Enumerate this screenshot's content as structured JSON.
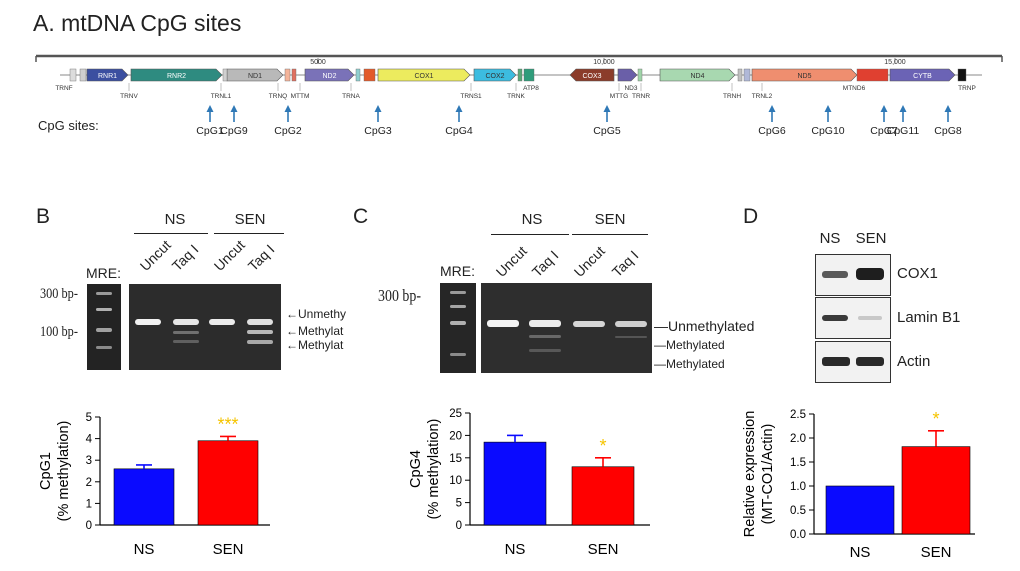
{
  "title": "A. mtDNA CpG sites",
  "genome": {
    "ruler_ticks": [
      "5000",
      "10,000",
      "15,000"
    ],
    "genes": [
      {
        "name": "RNR1",
        "color": "#3b4fa0",
        "labeled": true
      },
      {
        "name": "RNR2",
        "color": "#2e8b80",
        "labeled": true
      },
      {
        "name": "ND1",
        "color": "#b9b9b9",
        "labeled": true
      },
      {
        "name": "ND2",
        "color": "#7a72b8",
        "labeled": true
      },
      {
        "name": "COX1",
        "color": "#eceb5e",
        "labeled": true
      },
      {
        "name": "COX2",
        "color": "#3cbce0",
        "labeled": true
      },
      {
        "name": "COX3",
        "color": "#8b3c2a",
        "labeled": true
      },
      {
        "name": "ND3",
        "color": "#6a5fa8",
        "labeled": false
      },
      {
        "name": "ND4",
        "color": "#a8d8b0",
        "labeled": true
      },
      {
        "name": "ND5",
        "color": "#ef8e6f",
        "labeled": true
      },
      {
        "name": "CYTB",
        "color": "#6b63b5",
        "labeled": true
      }
    ],
    "below_labels": [
      "TRNF",
      "TRNV",
      "TRNL1",
      "TRNQ",
      "MTTM",
      "TRNA",
      "TRNS1",
      "TRNK",
      "ATP8",
      "MTTG",
      "ND3",
      "TRNR",
      "TRNH",
      "TRNL2",
      "MTND6",
      "TRNP"
    ],
    "cpg_label": "CpG sites:",
    "cpg_sites": [
      "CpG1",
      "CpG9",
      "CpG2",
      "CpG3",
      "CpG4",
      "CpG5",
      "CpG6",
      "CpG10",
      "CpG7",
      "CpG11",
      "CpG8"
    ],
    "colors": {
      "arrow": "#2f78b6",
      "backbone": "#555555"
    }
  },
  "panel_b": {
    "letter": "B",
    "gel": {
      "groups": [
        "NS",
        "SEN"
      ],
      "lanes": [
        "Uncut",
        "Taq I",
        "Uncut",
        "Taq I"
      ],
      "mre_label": "MRE:",
      "size_markers": [
        "300 bp-",
        "100 bp-"
      ],
      "band_labels": [
        "Unmethy",
        "Methylat",
        "Methylat"
      ]
    }
  },
  "panel_c": {
    "letter": "C",
    "gel": {
      "groups": [
        "NS",
        "SEN"
      ],
      "lanes": [
        "Uncut",
        "Taq I",
        "Uncut",
        "Taq I"
      ],
      "mre_label": "MRE:",
      "size_markers": [
        "300 bp-"
      ],
      "band_labels": [
        "Unmethylated",
        "Methylated",
        "Methylated"
      ]
    }
  },
  "panel_d": {
    "letter": "D",
    "blot": {
      "groups": [
        "NS",
        "SEN"
      ],
      "proteins": [
        "COX1",
        "Lamin B1",
        "Actin"
      ]
    }
  },
  "chart_data": [
    {
      "type": "bar",
      "panel": "B",
      "categories": [
        "NS",
        "SEN"
      ],
      "values": [
        2.6,
        3.9
      ],
      "errors": [
        0.18,
        0.2
      ],
      "colors": [
        "#0a0aff",
        "#ff0000"
      ],
      "significance": [
        "",
        "***"
      ],
      "ylabel_line1": "CpG1",
      "ylabel_line2": "(% methylation)",
      "ylim": [
        0,
        5
      ],
      "yticks": [
        "0",
        "1",
        "2",
        "3",
        "4",
        "5"
      ]
    },
    {
      "type": "bar",
      "panel": "C",
      "categories": [
        "NS",
        "SEN"
      ],
      "values": [
        18.5,
        13.0
      ],
      "errors": [
        1.5,
        2.0
      ],
      "colors": [
        "#0a0aff",
        "#ff0000"
      ],
      "significance": [
        "",
        "*"
      ],
      "ylabel_line1": "CpG4",
      "ylabel_line2": "(% methylation)",
      "ylim": [
        0,
        25
      ],
      "yticks": [
        "0",
        "5",
        "10",
        "15",
        "20",
        "25"
      ]
    },
    {
      "type": "bar",
      "panel": "D",
      "categories": [
        "NS",
        "SEN"
      ],
      "values": [
        1.0,
        1.82
      ],
      "errors": [
        0,
        0.33
      ],
      "colors": [
        "#0a0aff",
        "#ff0000"
      ],
      "significance": [
        "",
        "*"
      ],
      "ylabel_line1": "Relative expression",
      "ylabel_line2": "(MT-CO1/Actin)",
      "ylim": [
        0,
        2.5
      ],
      "yticks": [
        "0.0",
        "0.5",
        "1.0",
        "1.5",
        "2.0",
        "2.5"
      ]
    }
  ],
  "sig_color": "#f5c400"
}
